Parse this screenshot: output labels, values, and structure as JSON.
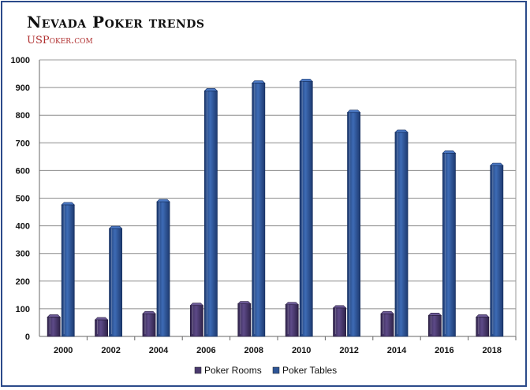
{
  "title": "Nevada Poker trends",
  "subtitle": "USPoker.com",
  "colors": {
    "frame": "#2b4a8a",
    "rooms": "#4a3a6e",
    "tables": "#2e5596",
    "grid": "#8c8c8c"
  },
  "chart_data": {
    "type": "bar",
    "categories": [
      "2000",
      "2002",
      "2004",
      "2006",
      "2008",
      "2010",
      "2012",
      "2014",
      "2016",
      "2018"
    ],
    "series": [
      {
        "name": "Poker Rooms",
        "values": [
          70,
          60,
          82,
          112,
          118,
          115,
          103,
          82,
          76,
          70
        ]
      },
      {
        "name": "Poker Tables",
        "values": [
          476,
          390,
          487,
          888,
          916,
          922,
          810,
          738,
          663,
          618
        ]
      }
    ],
    "ylim": [
      0,
      1000
    ],
    "yticks": [
      0,
      100,
      200,
      300,
      400,
      500,
      600,
      700,
      800,
      900,
      1000
    ],
    "grid": true,
    "legend": "bottom"
  }
}
